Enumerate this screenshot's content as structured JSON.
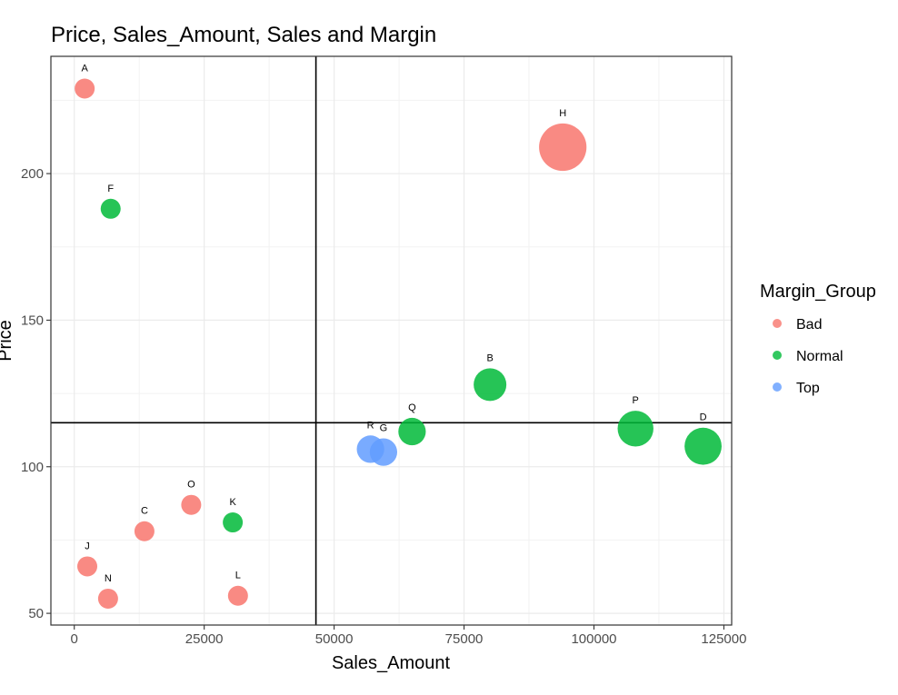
{
  "chart_data": {
    "type": "scatter",
    "title": "Price, Sales_Amount, Sales and Margin",
    "xlabel": "Sales_Amount",
    "ylabel": "Price",
    "xlim": [
      -4500,
      126500
    ],
    "ylim": [
      46,
      240
    ],
    "x_ticks": [
      0,
      25000,
      50000,
      75000,
      100000,
      125000
    ],
    "y_ticks": [
      50,
      100,
      150,
      200
    ],
    "grid": true,
    "reference_lines": {
      "vertical_x": 46500,
      "horizontal_y": 115
    },
    "legend": {
      "title": "Margin_Group",
      "placement": "right",
      "entries": [
        {
          "name": "Bad",
          "color": "#F8766D"
        },
        {
          "name": "Normal",
          "color": "#00BA38"
        },
        {
          "name": "Top",
          "color": "#619CFF"
        }
      ]
    },
    "points": [
      {
        "label": "A",
        "x": 2000,
        "y": 229,
        "size": 1,
        "group": "Bad"
      },
      {
        "label": "F",
        "x": 7000,
        "y": 188,
        "size": 1,
        "group": "Normal"
      },
      {
        "label": "H",
        "x": 94000,
        "y": 209,
        "size": 10,
        "group": "Bad"
      },
      {
        "label": "B",
        "x": 80000,
        "y": 128,
        "size": 4,
        "group": "Normal"
      },
      {
        "label": "Q",
        "x": 65000,
        "y": 112,
        "size": 2.5,
        "group": "Normal"
      },
      {
        "label": "R",
        "x": 57000,
        "y": 106,
        "size": 2.5,
        "group": "Top"
      },
      {
        "label": "G",
        "x": 59500,
        "y": 105,
        "size": 2.5,
        "group": "Top"
      },
      {
        "label": "P",
        "x": 108000,
        "y": 113,
        "size": 5,
        "group": "Normal"
      },
      {
        "label": "D",
        "x": 121000,
        "y": 107,
        "size": 5.5,
        "group": "Normal"
      },
      {
        "label": "O",
        "x": 22500,
        "y": 87,
        "size": 1,
        "group": "Bad"
      },
      {
        "label": "C",
        "x": 13500,
        "y": 78,
        "size": 1,
        "group": "Bad"
      },
      {
        "label": "K",
        "x": 30500,
        "y": 81,
        "size": 1,
        "group": "Normal"
      },
      {
        "label": "J",
        "x": 2500,
        "y": 66,
        "size": 1,
        "group": "Bad"
      },
      {
        "label": "N",
        "x": 6500,
        "y": 55,
        "size": 1,
        "group": "Bad"
      },
      {
        "label": "L",
        "x": 31500,
        "y": 56,
        "size": 1,
        "group": "Bad"
      }
    ]
  }
}
